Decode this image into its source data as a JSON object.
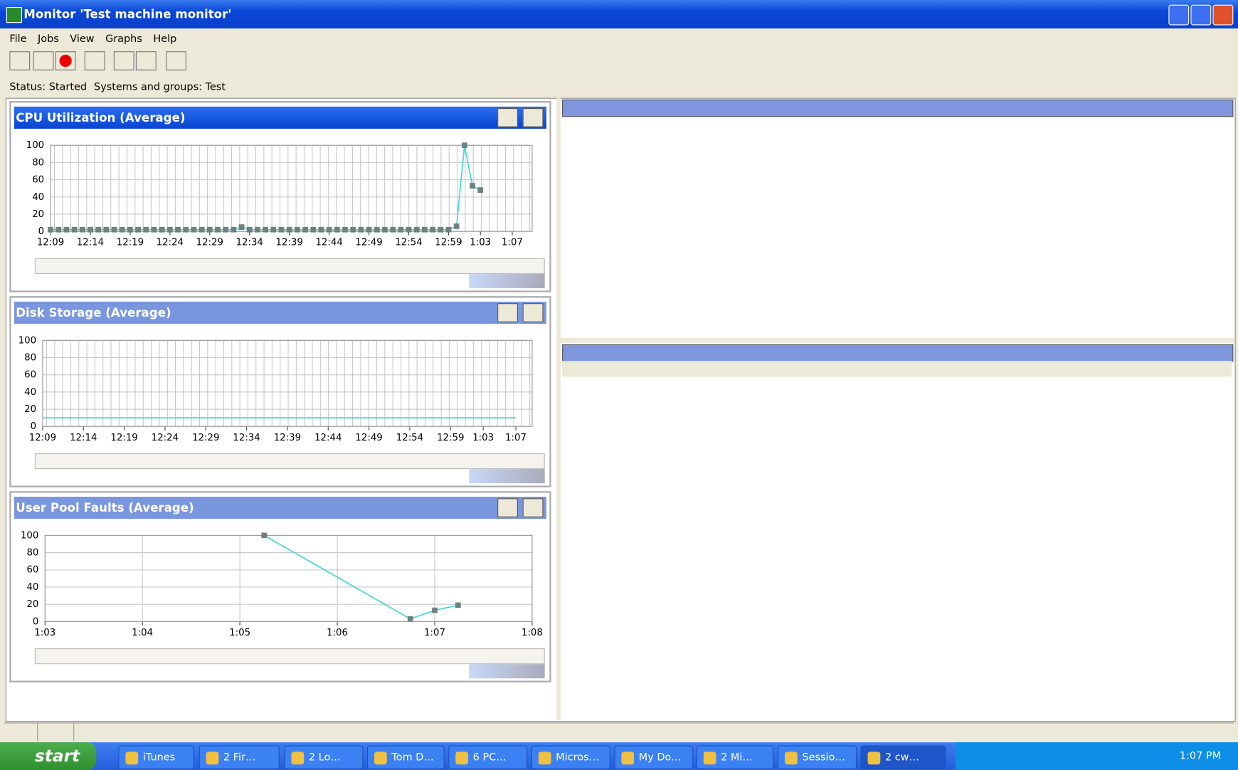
{
  "window": {
    "title": "Monitor 'Test machine monitor'"
  },
  "menu": [
    "File",
    "Jobs",
    "View",
    "Graphs",
    "Help"
  ],
  "status": {
    "status": "Status: Started",
    "systems": "Systems and groups: Test"
  },
  "chart_data": [
    {
      "type": "line",
      "title": "CPU Utilization (Average)",
      "active": true,
      "markers": true,
      "grid": true,
      "minor_grid": true,
      "color": "#40d8d8",
      "marker_color": "#6f8080",
      "x": [
        729,
        730,
        731,
        732,
        733,
        734,
        735,
        736,
        737,
        738,
        739,
        740,
        741,
        742,
        743,
        744,
        745,
        746,
        747,
        748,
        749,
        750,
        751,
        752,
        753,
        754,
        755,
        756,
        757,
        758,
        759,
        760,
        761,
        762,
        763,
        764,
        765,
        766,
        767,
        768,
        769,
        770,
        771,
        772,
        773,
        774,
        775,
        776,
        777,
        778,
        779,
        780,
        781,
        782,
        783
      ],
      "values": [
        2,
        2,
        2,
        2,
        2,
        2,
        2,
        2,
        2,
        2,
        2,
        2,
        2,
        2,
        2,
        2,
        2,
        2,
        2,
        2,
        2,
        2,
        2,
        2,
        5,
        2,
        2,
        2,
        2,
        2,
        2,
        2,
        2,
        2,
        2,
        2,
        2,
        2,
        2,
        2,
        2,
        2,
        2,
        2,
        2,
        2,
        2,
        2,
        2,
        2,
        2,
        6,
        100,
        53,
        48
      ],
      "xlim": [
        729,
        789.5
      ],
      "xticks": [
        {
          "value": 729,
          "label": "12:09"
        },
        {
          "value": 734,
          "label": "12:14"
        },
        {
          "value": 739,
          "label": "12:19"
        },
        {
          "value": 744,
          "label": "12:24"
        },
        {
          "value": 749,
          "label": "12:29"
        },
        {
          "value": 754,
          "label": "12:34"
        },
        {
          "value": 759,
          "label": "12:39"
        },
        {
          "value": 764,
          "label": "12:44"
        },
        {
          "value": 769,
          "label": "12:49"
        },
        {
          "value": 774,
          "label": "12:54"
        },
        {
          "value": 779,
          "label": "12:59"
        },
        {
          "value": 783,
          "label": "1:03"
        },
        {
          "value": 787,
          "label": "1:07"
        }
      ],
      "ylim": [
        0,
        100
      ],
      "yticks": [
        0,
        20,
        40,
        60,
        80,
        100
      ]
    },
    {
      "type": "line",
      "title": "Disk Storage (Average)",
      "active": false,
      "markers": false,
      "grid": true,
      "minor_grid": true,
      "color": "#40d8d8",
      "marker_color": "#6f8080",
      "x": [
        729,
        787
      ],
      "values": [
        10,
        10
      ],
      "xlim": [
        729,
        789
      ],
      "xticks": [
        {
          "value": 729,
          "label": "12:09"
        },
        {
          "value": 734,
          "label": "12:14"
        },
        {
          "value": 739,
          "label": "12:19"
        },
        {
          "value": 744,
          "label": "12:24"
        },
        {
          "value": 749,
          "label": "12:29"
        },
        {
          "value": 754,
          "label": "12:34"
        },
        {
          "value": 759,
          "label": "12:39"
        },
        {
          "value": 764,
          "label": "12:44"
        },
        {
          "value": 769,
          "label": "12:49"
        },
        {
          "value": 774,
          "label": "12:54"
        },
        {
          "value": 779,
          "label": "12:59"
        },
        {
          "value": 783,
          "label": "1:03"
        },
        {
          "value": 787,
          "label": "1:07"
        }
      ],
      "ylim": [
        0,
        100
      ],
      "yticks": [
        0,
        20,
        40,
        60,
        80,
        100
      ]
    },
    {
      "type": "line",
      "title": "User Pool Faults (Average)",
      "active": false,
      "markers": true,
      "grid": true,
      "minor_grid": false,
      "color": "#40d8d8",
      "marker_color": "#6f8080",
      "x": [
        785.25,
        786.75,
        787,
        787.24
      ],
      "values": [
        100,
        3,
        13,
        19
      ],
      "xlim": [
        783,
        788
      ],
      "xticks": [
        {
          "value": 783,
          "label": "1:03"
        },
        {
          "value": 784,
          "label": "1:04"
        },
        {
          "value": 785,
          "label": "1:05"
        },
        {
          "value": 786,
          "label": "1:06"
        },
        {
          "value": 787,
          "label": "1:07"
        },
        {
          "value": 788,
          "label": "1:08"
        }
      ],
      "ylim": [
        0,
        100
      ],
      "yticks": [
        0,
        20,
        40,
        60,
        80,
        100
      ]
    }
  ],
  "taskbar": {
    "start": "start",
    "items": [
      "iTunes",
      "2 Fir…",
      "2 Lo…",
      "Tom D…",
      "6 PC…",
      "Micros…",
      "My Do…",
      "2 Mi…",
      "Sessio…",
      "2 cw…"
    ],
    "clock": "1:07 PM"
  }
}
